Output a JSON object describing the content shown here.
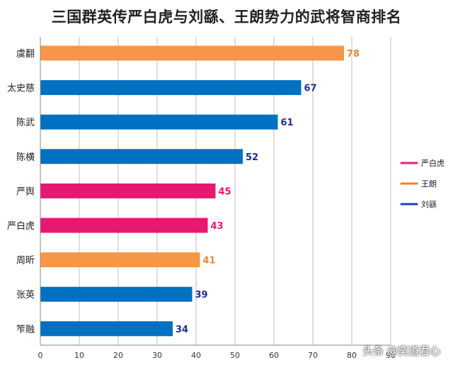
{
  "chart_data": {
    "type": "bar",
    "orientation": "horizontal",
    "title": "三国群英传严白虎与刘繇、王朗势力的武将智商排名",
    "categories": [
      "虞翻",
      "太史慈",
      "陈武",
      "陈横",
      "严舆",
      "严白虎",
      "周昕",
      "张英",
      "笮融"
    ],
    "values": [
      78,
      67,
      61,
      52,
      45,
      43,
      41,
      39,
      34
    ],
    "series_of_bar": [
      "王朗",
      "刘繇",
      "刘繇",
      "刘繇",
      "严白虎",
      "严白虎",
      "王朗",
      "刘繇",
      "刘繇"
    ],
    "legend": [
      {
        "name": "严白虎",
        "color": "#e6186f"
      },
      {
        "name": "王朗",
        "color": "#f79646"
      },
      {
        "name": "刘繇",
        "color": "#0070c0"
      }
    ],
    "legend_line_colors": {
      "严白虎": "#e31e8c",
      "王朗": "#f47c2c",
      "刘繇": "#1f3fbf"
    },
    "label_colors": {
      "严白虎": "#e6186f",
      "王朗": "#e8873a",
      "刘繇": "#1f2f8f"
    },
    "xlim": [
      0,
      90
    ],
    "xticks": [
      0,
      10,
      20,
      30,
      40,
      50,
      60,
      70,
      80,
      90
    ],
    "grid": "vertical",
    "legend_position": "right"
  },
  "watermark": "头条 @奕道君心"
}
